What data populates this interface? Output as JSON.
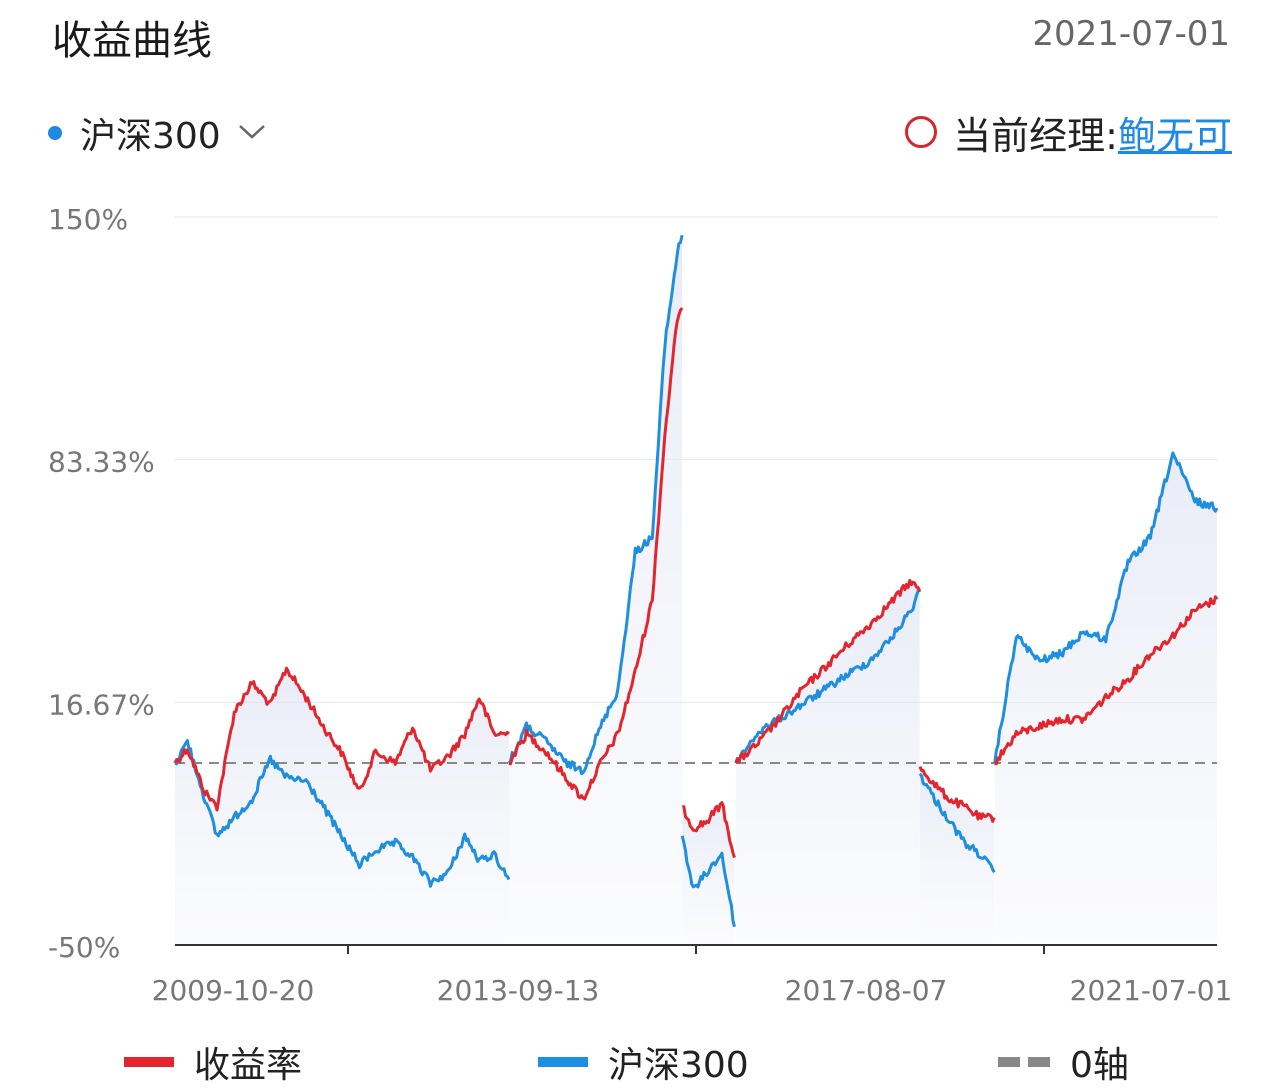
{
  "header": {
    "title": "收益曲线",
    "date": "2021-07-01"
  },
  "benchmark_selector": {
    "label": "沪深300",
    "dot_color": "#1e88e5"
  },
  "manager": {
    "label": "当前经理:",
    "name": "鲍无可",
    "link_color": "#1e88e5",
    "ring_color": "#d9262c"
  },
  "colors": {
    "return": "#e3262e",
    "benchmark": "#1e8fdf",
    "zero_axis": "#888888"
  },
  "chart_data": {
    "type": "line",
    "ylim": [
      -50,
      150
    ],
    "y_ticks": [
      {
        "value": 150,
        "label": "150%"
      },
      {
        "value": 83.33,
        "label": "83.33%"
      },
      {
        "value": 16.67,
        "label": "16.67%"
      },
      {
        "value": -50,
        "label": "-50%"
      }
    ],
    "x_ticks": [
      "2009-10-20",
      "2013-09-13",
      "2017-08-07",
      "2021-07-01"
    ],
    "zero_line": 0,
    "series": [
      {
        "name": "收益率",
        "segments": [
          {
            "x": [
              "2009-10-20",
              "2009-12-10",
              "2010-02-20",
              "2010-04-10",
              "2010-06-20",
              "2010-09-01",
              "2010-11-15",
              "2011-01-20",
              "2011-04-10",
              "2011-06-20",
              "2011-09-01",
              "2011-11-15",
              "2012-01-20",
              "2012-04-10",
              "2012-06-20",
              "2012-09-01",
              "2012-11-15",
              "2013-01-20",
              "2013-03-20",
              "2013-05-20",
              "2013-07-20"
            ],
            "y": [
              0,
              4,
              -8,
              -12,
              14,
              22,
              16,
              26,
              18,
              10,
              3,
              -8,
              3,
              0,
              10,
              -2,
              2,
              8,
              18,
              8,
              8
            ]
          },
          {
            "x": [
              "2013-07-20",
              "2013-09-30",
              "2013-12-20",
              "2014-03-10",
              "2014-05-20",
              "2014-07-31",
              "2014-10-10",
              "2014-12-20",
              "2015-02-28",
              "2015-04-20",
              "2015-06-10",
              "2015-06-30"
            ],
            "y": [
              0,
              8,
              3,
              -4,
              -10,
              0,
              8,
              25,
              45,
              90,
              122,
              125
            ]
          },
          {
            "x": [
              "2015-07-01",
              "2015-08-15",
              "2015-10-10",
              "2015-12-10",
              "2016-01-31"
            ],
            "y": [
              -12,
              -18,
              -16,
              -11,
              -26
            ]
          },
          {
            "x": [
              "2016-02-05",
              "2016-05-01",
              "2016-07-31",
              "2016-11-01",
              "2017-02-01",
              "2017-05-01",
              "2017-08-07",
              "2017-10-31",
              "2018-01-25",
              "2018-02-28"
            ],
            "y": [
              0,
              5,
              12,
              20,
              26,
              32,
              38,
              44,
              50,
              47
            ]
          },
          {
            "x": [
              "2018-03-01",
              "2018-05-01",
              "2018-07-01",
              "2018-09-01",
              "2018-11-01",
              "2018-12-31"
            ],
            "y": [
              -1,
              -6,
              -10,
              -12,
              -15,
              -15
            ]
          },
          {
            "x": [
              "2019-01-02",
              "2019-03-31",
              "2019-06-30",
              "2019-10-01",
              "2020-01-01",
              "2020-04-01",
              "2020-07-01",
              "2020-10-01",
              "2021-01-01",
              "2021-04-01",
              "2021-07-01"
            ],
            "y": [
              0,
              8,
              10,
              12,
              12,
              18,
              23,
              30,
              35,
              42,
              45
            ]
          }
        ]
      },
      {
        "name": "沪深300",
        "segments": [
          {
            "x": [
              "2009-10-20",
              "2009-12-10",
              "2010-02-20",
              "2010-04-10",
              "2010-06-20",
              "2010-09-01",
              "2010-11-15",
              "2011-01-20",
              "2011-04-10",
              "2011-06-20",
              "2011-09-01",
              "2011-11-15",
              "2012-01-20",
              "2012-04-10",
              "2012-06-20",
              "2012-09-01",
              "2012-11-15",
              "2013-01-20",
              "2013-03-20",
              "2013-05-20",
              "2013-07-20"
            ],
            "y": [
              0,
              6,
              -10,
              -20,
              -15,
              -10,
              1,
              -4,
              -5,
              -12,
              -20,
              -28,
              -24,
              -22,
              -26,
              -33,
              -30,
              -20,
              -27,
              -25,
              -32
            ]
          },
          {
            "x": [
              "2013-07-20",
              "2013-09-30",
              "2013-12-20",
              "2014-03-10",
              "2014-05-20",
              "2014-07-31",
              "2014-10-10",
              "2014-12-20",
              "2015-02-28",
              "2015-04-20",
              "2015-06-10",
              "2015-06-30"
            ],
            "y": [
              0,
              10,
              6,
              0,
              -2,
              10,
              20,
              58,
              62,
              115,
              140,
              145
            ]
          },
          {
            "x": [
              "2015-07-01",
              "2015-08-15",
              "2015-10-10",
              "2015-12-10",
              "2016-01-31"
            ],
            "y": [
              -20,
              -35,
              -30,
              -25,
              -45
            ]
          },
          {
            "x": [
              "2016-02-05",
              "2016-05-01",
              "2016-07-31",
              "2016-11-01",
              "2017-02-01",
              "2017-05-01",
              "2017-08-07",
              "2017-10-31",
              "2018-01-25",
              "2018-02-28"
            ],
            "y": [
              0,
              8,
              12,
              16,
              20,
              24,
              28,
              34,
              42,
              48
            ]
          },
          {
            "x": [
              "2018-03-01",
              "2018-05-01",
              "2018-07-01",
              "2018-09-01",
              "2018-11-01",
              "2018-12-31"
            ],
            "y": [
              -3,
              -10,
              -16,
              -22,
              -25,
              -30
            ]
          },
          {
            "x": [
              "2019-01-02",
              "2019-03-31",
              "2019-06-30",
              "2019-10-01",
              "2020-01-01",
              "2020-04-01",
              "2020-07-01",
              "2020-10-01",
              "2021-01-01",
              "2021-04-01",
              "2021-07-01"
            ],
            "y": [
              0,
              35,
              28,
              30,
              36,
              34,
              55,
              62,
              85,
              72,
              70
            ]
          }
        ]
      }
    ]
  },
  "legend": {
    "return_label": "收益率",
    "benchmark_label": "沪深300",
    "zero_label": "0轴"
  }
}
